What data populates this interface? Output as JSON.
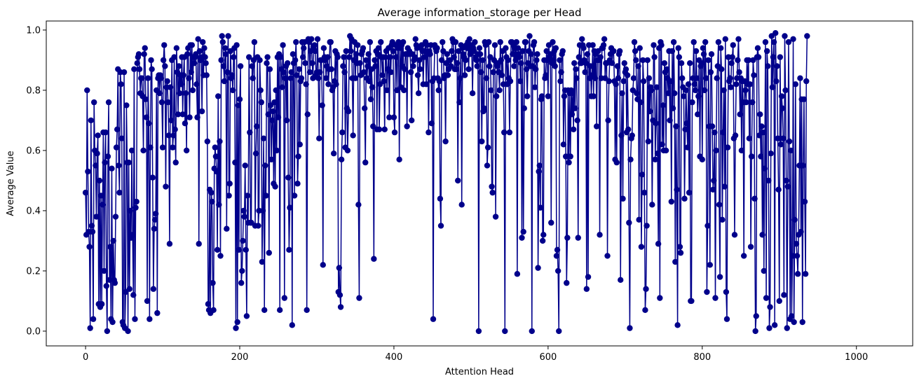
{
  "chart_data": {
    "type": "line",
    "title": "Average information_storage per Head",
    "xlabel": "Attention Head",
    "ylabel": "Average Value",
    "xlim": [
      -51,
      1073
    ],
    "ylim": [
      -0.049,
      1.03
    ],
    "xticks": [
      0,
      200,
      400,
      600,
      800,
      1000
    ],
    "xtick_labels": [
      "0",
      "200",
      "400",
      "600",
      "800",
      "1000"
    ],
    "yticks": [
      0.0,
      0.2,
      0.4,
      0.6,
      0.8,
      1.0
    ],
    "ytick_labels": [
      "0.0",
      "0.2",
      "0.4",
      "0.6",
      "0.8",
      "1.0"
    ],
    "grid": false,
    "marker": "circle",
    "series": [
      {
        "color": "#00008b",
        "x_start": 0,
        "x_step": 1,
        "values": [
          0.46,
          0.32,
          0.8,
          0.53,
          0.33,
          0.28,
          0.01,
          0.7,
          0.35,
          0.33,
          0.04,
          0.76,
          0.6,
          0.55,
          0.38,
          0.59,
          0.65,
          0.09,
          0.5,
          0.08,
          0.45,
          0.09,
          0.42,
          0.66,
          0.2,
          0.56,
          0.66,
          0.15,
          0.0,
          0.58,
          0.76,
          0.17,
          0.28,
          0.04,
          0.54,
          0.03,
          0.3,
          0.17,
          0.16,
          0.38,
          0.61,
          0.67,
          0.87,
          0.55,
          0.46,
          0.86,
          0.82,
          0.64,
          0.03,
          0.02,
          0.86,
          0.01,
          0.13,
          0.75,
          0.56,
          0.0,
          0.56,
          0.14,
          0.4,
          0.31,
          0.6,
          0.32,
          0.12,
          0.87,
          0.04,
          0.41,
          0.43,
          0.89,
          0.91,
          0.92,
          0.87,
          0.79,
          0.84,
          0.84,
          0.78,
          0.6,
          0.92,
          0.94,
          0.77,
          0.71,
          0.1,
          0.84,
          0.69,
          0.04,
          0.61,
          0.9,
          0.87,
          0.51,
          0.14,
          0.34,
          0.37,
          0.39,
          0.8,
          0.06,
          0.84,
          0.85,
          0.79,
          0.85,
          0.84,
          0.76,
          0.61,
          0.9,
          0.95,
          0.88,
          0.48,
          0.81,
          0.83,
          0.76,
          0.65,
          0.29,
          0.81,
          0.7,
          0.9,
          0.61,
          0.65,
          0.91,
          0.67,
          0.56,
          0.94,
          0.86,
          0.72,
          0.88,
          0.79,
          0.85,
          0.82,
          0.91,
          0.72,
          0.85,
          0.91,
          0.69,
          0.79,
          0.6,
          0.92,
          0.94,
          0.84,
          0.71,
          0.95,
          0.86,
          0.95,
          0.8,
          0.91,
          0.89,
          0.91,
          0.92,
          0.82,
          0.71,
          0.97,
          0.29,
          0.93,
          0.9,
          0.91,
          0.73,
          0.96,
          0.85,
          0.94,
          0.91,
          0.89,
          0.85,
          0.63,
          0.09,
          0.07,
          0.47,
          0.06,
          0.46,
          0.43,
          0.16,
          0.07,
          0.54,
          0.61,
          0.58,
          0.53,
          0.27,
          0.78,
          0.42,
          0.63,
          0.25,
          0.9,
          0.98,
          0.96,
          0.88,
          0.83,
          0.94,
          0.92,
          0.34,
          0.86,
          0.98,
          0.45,
          0.49,
          0.93,
          0.84,
          0.85,
          0.8,
          0.91,
          0.94,
          0.56,
          0.01,
          0.95,
          0.03,
          0.75,
          0.27,
          0.77,
          0.88,
          0.16,
          0.2,
          0.3,
          0.4,
          0.38,
          0.55,
          0.27,
          0.05,
          0.45,
          0.36,
          0.91,
          0.66,
          0.36,
          0.36,
          0.88,
          0.84,
          0.9,
          0.96,
          0.35,
          0.59,
          0.68,
          0.91,
          0.35,
          0.4,
          0.9,
          0.8,
          0.76,
          0.23,
          0.4,
          0.64,
          0.07,
          0.55,
          0.45,
          0.89,
          0.91,
          0.72,
          0.26,
          0.87,
          0.75,
          0.57,
          0.7,
          0.73,
          0.49,
          0.76,
          0.48,
          0.8,
          0.6,
          0.91,
          0.71,
          0.92,
          0.07,
          0.91,
          0.87,
          0.81,
          0.95,
          0.86,
          0.11,
          0.84,
          0.88,
          0.7,
          0.89,
          0.51,
          0.27,
          0.41,
          0.84,
          0.86,
          0.02,
          0.92,
          0.89,
          0.45,
          0.9,
          0.96,
          0.85,
          0.49,
          0.58,
          0.87,
          0.62,
          0.83,
          0.84,
          0.96,
          0.91,
          0.94,
          0.96,
          0.89,
          0.82,
          0.07,
          0.72,
          0.97,
          0.96,
          0.86,
          0.93,
          0.97,
          0.89,
          0.84,
          0.94,
          0.95,
          0.93,
          0.85,
          0.86,
          0.97,
          0.84,
          0.64,
          0.86,
          0.9,
          0.9,
          0.75,
          0.22,
          0.94,
          0.91,
          0.9,
          0.84,
          0.88,
          0.91,
          0.82,
          0.87,
          0.96,
          0.96,
          0.87,
          0.8,
          0.81,
          0.59,
          0.83,
          0.93,
          0.82,
          0.92,
          0.91,
          0.13,
          0.21,
          0.12,
          0.08,
          0.57,
          0.66,
          0.88,
          0.91,
          0.86,
          0.61,
          0.93,
          0.74,
          0.6,
          0.73,
          0.91,
          0.98,
          0.93,
          0.97,
          0.84,
          0.65,
          0.9,
          0.96,
          0.84,
          0.92,
          0.89,
          0.95,
          0.42,
          0.11,
          0.89,
          0.85,
          0.92,
          0.93,
          0.94,
          0.86,
          0.74,
          0.56,
          0.9,
          0.84,
          0.88,
          0.92,
          0.83,
          0.96,
          0.77,
          0.87,
          0.81,
          0.68,
          0.24,
          0.9,
          0.88,
          0.93,
          0.67,
          0.92,
          0.94,
          0.67,
          0.82,
          0.96,
          0.91,
          0.85,
          0.91,
          0.83,
          0.67,
          0.91,
          0.93,
          0.8,
          0.87,
          0.94,
          0.71,
          0.91,
          0.86,
          0.95,
          0.96,
          0.93,
          0.71,
          0.66,
          0.95,
          0.91,
          0.8,
          0.94,
          0.96,
          0.57,
          0.94,
          0.81,
          0.95,
          0.88,
          0.96,
          0.8,
          0.87,
          0.92,
          0.92,
          0.68,
          0.94,
          0.92,
          0.93,
          0.92,
          0.86,
          0.7,
          0.92,
          0.88,
          0.9,
          0.91,
          0.97,
          0.95,
          0.94,
          0.85,
          0.79,
          0.9,
          0.87,
          0.94,
          0.95,
          0.93,
          0.82,
          0.91,
          0.93,
          0.96,
          0.82,
          0.95,
          0.92,
          0.66,
          0.93,
          0.92,
          0.95,
          0.69,
          0.83,
          0.04,
          0.84,
          0.95,
          0.94,
          0.93,
          0.94,
          0.84,
          0.8,
          0.83,
          0.44,
          0.35,
          0.9,
          0.96,
          0.93,
          0.84,
          0.85,
          0.63,
          0.89,
          0.92,
          0.85,
          0.87,
          0.9,
          0.9,
          0.88,
          0.93,
          0.97,
          0.96,
          0.91,
          0.87,
          0.96,
          0.87,
          0.89,
          0.5,
          0.93,
          0.76,
          0.84,
          0.95,
          0.42,
          0.94,
          0.92,
          0.91,
          0.85,
          0.9,
          0.95,
          0.94,
          0.96,
          0.87,
          0.97,
          0.92,
          0.95,
          0.93,
          0.79,
          0.94,
          0.93,
          0.96,
          0.91,
          0.9,
          0.88,
          0.92,
          0.0,
          0.94,
          0.92,
          0.86,
          0.63,
          0.9,
          0.73,
          0.74,
          0.96,
          0.95,
          0.84,
          0.55,
          0.61,
          0.96,
          0.88,
          0.91,
          0.8,
          0.48,
          0.46,
          0.86,
          0.9,
          0.95,
          0.38,
          0.78,
          0.88,
          0.89,
          0.86,
          0.8,
          0.96,
          0.9,
          0.85,
          0.93,
          0.82,
          0.66,
          0.0,
          0.94,
          0.91,
          0.82,
          0.9,
          0.84,
          0.66,
          0.83,
          0.96,
          0.96,
          0.92,
          0.95,
          0.88,
          0.94,
          0.9,
          0.96,
          0.19,
          0.94,
          0.92,
          0.91,
          0.83,
          0.89,
          0.31,
          0.93,
          0.33,
          0.74,
          0.96,
          0.96,
          0.87,
          0.78,
          0.89,
          0.93,
          0.98,
          0.88,
          0.92,
          0.0,
          0.88,
          0.95,
          0.96,
          0.81,
          0.87,
          0.9,
          0.92,
          0.21,
          0.53,
          0.55,
          0.41,
          0.77,
          0.78,
          0.3,
          0.32,
          0.9,
          0.84,
          0.85,
          0.93,
          0.9,
          0.78,
          0.95,
          0.91,
          0.92,
          0.36,
          0.89,
          0.96,
          0.9,
          0.93,
          0.88,
          0.94,
          0.25,
          0.27,
          0.2,
          0.0,
          0.9,
          0.83,
          0.86,
          0.92,
          0.93,
          0.62,
          0.78,
          0.8,
          0.58,
          0.16,
          0.31,
          0.8,
          0.56,
          0.79,
          0.58,
          0.8,
          0.72,
          0.79,
          0.67,
          0.89,
          0.74,
          0.87,
          0.84,
          0.7,
          0.31,
          0.91,
          0.95,
          0.89,
          0.89,
          0.97,
          0.95,
          0.94,
          0.9,
          0.86,
          0.89,
          0.14,
          0.92,
          0.18,
          0.95,
          0.84,
          0.88,
          0.78,
          0.85,
          0.95,
          0.78,
          0.93,
          0.84,
          0.92,
          0.68,
          0.9,
          0.93,
          0.9,
          0.32,
          0.91,
          0.84,
          0.94,
          0.94,
          0.95,
          0.97,
          0.84,
          0.89,
          0.89,
          0.25,
          0.7,
          0.83,
          0.9,
          0.92,
          0.94,
          0.89,
          0.93,
          0.93,
          0.83,
          0.57,
          0.82,
          0.56,
          0.88,
          0.84,
          0.92,
          0.93,
          0.17,
          0.65,
          0.79,
          0.44,
          0.83,
          0.89,
          0.86,
          0.87,
          0.66,
          0.85,
          0.67,
          0.36,
          0.01,
          0.57,
          0.64,
          0.65,
          0.8,
          0.84,
          0.96,
          0.93,
          0.9,
          0.79,
          0.77,
          0.88,
          0.37,
          0.94,
          0.76,
          0.28,
          0.52,
          0.9,
          0.83,
          0.46,
          0.07,
          0.14,
          0.35,
          0.9,
          0.63,
          0.84,
          0.73,
          0.81,
          0.8,
          0.42,
          0.7,
          0.95,
          0.91,
          0.57,
          0.69,
          0.81,
          0.59,
          0.29,
          0.94,
          0.11,
          0.96,
          0.95,
          0.62,
          0.75,
          0.6,
          0.89,
          0.86,
          0.6,
          0.87,
          0.84,
          0.79,
          0.93,
          0.7,
          0.83,
          0.43,
          0.93,
          0.74,
          0.96,
          0.79,
          0.23,
          0.68,
          0.47,
          0.02,
          0.94,
          0.91,
          0.28,
          0.26,
          0.89,
          0.84,
          0.81,
          0.78,
          0.44,
          0.67,
          0.8,
          0.69,
          0.61,
          0.82,
          0.46,
          0.89,
          0.1,
          0.1,
          0.76,
          0.84,
          0.96,
          0.82,
          0.8,
          0.93,
          0.84,
          0.72,
          0.78,
          0.9,
          0.58,
          0.88,
          0.89,
          0.57,
          0.94,
          0.92,
          0.8,
          0.96,
          0.84,
          0.13,
          0.35,
          0.9,
          0.68,
          0.22,
          0.86,
          0.92,
          0.68,
          0.47,
          0.5,
          0.66,
          0.11,
          0.6,
          0.84,
          0.88,
          0.96,
          0.42,
          0.18,
          0.94,
          0.87,
          0.37,
          0.66,
          0.8,
          0.48,
          0.97,
          0.13,
          0.04,
          0.61,
          0.91,
          0.83,
          0.84,
          0.81,
          0.89,
          0.91,
          0.95,
          0.64,
          0.32,
          0.65,
          0.82,
          0.84,
          0.9,
          0.97,
          0.86,
          0.72,
          0.84,
          0.6,
          0.83,
          0.76,
          0.25,
          0.83,
          0.8,
          0.76,
          0.9,
          0.82,
          0.9,
          0.64,
          0.82,
          0.28,
          0.58,
          0.76,
          0.9,
          0.85,
          0.44,
          0.0,
          0.05,
          0.91,
          0.94,
          0.91,
          0.65,
          0.72,
          0.58,
          0.68,
          0.32,
          0.66,
          0.2,
          0.54,
          0.96,
          0.11,
          0.93,
          0.88,
          0.5,
          0.01,
          0.08,
          0.59,
          0.98,
          0.81,
          0.91,
          0.96,
          0.02,
          0.99,
          0.83,
          0.88,
          0.64,
          0.47,
          0.1,
          0.91,
          0.62,
          0.78,
          0.74,
          0.64,
          0.12,
          0.98,
          0.8,
          0.5,
          0.01,
          0.48,
          0.96,
          0.63,
          0.04,
          0.6,
          0.05,
          0.25,
          0.97,
          0.03,
          0.37,
          0.82,
          0.29,
          0.25,
          0.19,
          0.32,
          0.55,
          0.84,
          0.33,
          0.77,
          0.03,
          0.55,
          0.77,
          0.43,
          0.19,
          0.83,
          0.98
        ]
      }
    ]
  }
}
